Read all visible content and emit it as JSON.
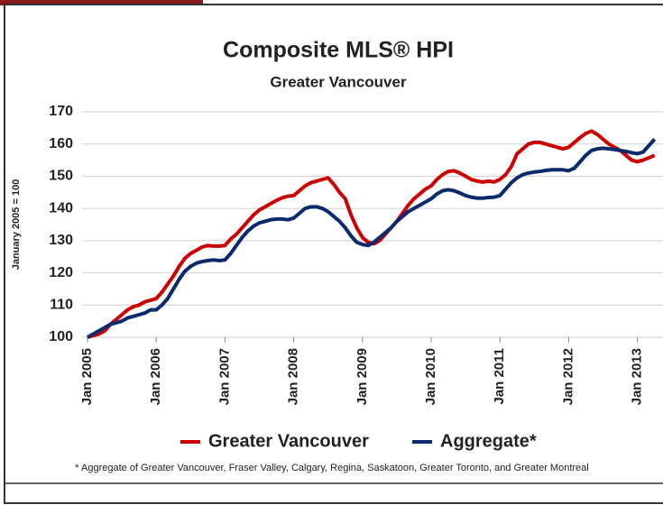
{
  "chart_data": {
    "type": "line",
    "title": "Composite MLS® HPI",
    "subtitle": "Greater Vancouver",
    "y_label": "January 2005 = 100",
    "footnote": "* Aggregate of Greater Vancouver, Fraser Valley, Calgary, Regina, Saskatoon, Greater Toronto, and Greater Montreal",
    "categories": [
      "Jan 2005",
      null,
      null,
      null,
      null,
      null,
      null,
      null,
      null,
      null,
      null,
      null,
      "Jan 2006",
      null,
      null,
      null,
      null,
      null,
      null,
      null,
      null,
      null,
      null,
      null,
      "Jan 2007",
      null,
      null,
      null,
      null,
      null,
      null,
      null,
      null,
      null,
      null,
      null,
      "Jan 2008",
      null,
      null,
      null,
      null,
      null,
      null,
      null,
      null,
      null,
      null,
      null,
      "Jan 2009",
      null,
      null,
      null,
      null,
      null,
      null,
      null,
      null,
      null,
      null,
      null,
      "Jan 2010",
      null,
      null,
      null,
      null,
      null,
      null,
      null,
      null,
      null,
      null,
      null,
      "Jan 2011",
      null,
      null,
      null,
      null,
      null,
      null,
      null,
      null,
      null,
      null,
      null,
      "Jan 2012",
      null,
      null,
      null,
      null,
      null,
      null,
      null,
      null,
      null,
      null,
      null,
      "Jan 2013",
      null,
      null,
      null
    ],
    "series": [
      {
        "name": "Greater Vancouver",
        "color": "#cc0000",
        "values": [
          100,
          100.5,
          101,
          102,
          104,
          105.5,
          107,
          108.5,
          109.5,
          110,
          111,
          111.5,
          112,
          114,
          116.5,
          119,
          122,
          124.5,
          126,
          127,
          128,
          128.5,
          128.3,
          128.3,
          128.5,
          130.5,
          132,
          134,
          136,
          138,
          139.5,
          140.5,
          141.5,
          142.5,
          143.3,
          143.8,
          144,
          145.5,
          147,
          148,
          148.5,
          149,
          149.5,
          147.5,
          145,
          143,
          138,
          134,
          131,
          129.5,
          129,
          130,
          132,
          134,
          136,
          138.5,
          141,
          143,
          144.5,
          146,
          147,
          149,
          150.5,
          151.5,
          151.7,
          151,
          150,
          149,
          148.5,
          148.2,
          148.5,
          148.2,
          149,
          150.5,
          153,
          157,
          158.5,
          160,
          160.5,
          160.5,
          160,
          159.5,
          159,
          158.5,
          159,
          160.5,
          162,
          163.3,
          164,
          163,
          161.5,
          160,
          159,
          158,
          156.5,
          155,
          154.5,
          155,
          155.7,
          156.5
        ]
      },
      {
        "name": "Aggregate*",
        "color": "#0a2a6e",
        "values": [
          100,
          101,
          102,
          103,
          104,
          104.5,
          105,
          106,
          106.5,
          107,
          107.5,
          108.5,
          108.5,
          110,
          112,
          115,
          118,
          120.5,
          122,
          123,
          123.5,
          123.8,
          124,
          123.8,
          124,
          126,
          128.5,
          131,
          133,
          134.5,
          135.5,
          136,
          136.5,
          136.7,
          136.7,
          136.5,
          137,
          138.5,
          140,
          140.5,
          140.5,
          140,
          139,
          137.5,
          136,
          134,
          131.5,
          129.5,
          128.8,
          128.5,
          129.5,
          131,
          132.5,
          134,
          136,
          137.5,
          139,
          140,
          141,
          142,
          143,
          144.5,
          145.5,
          145.8,
          145.5,
          144.8,
          144,
          143.5,
          143.2,
          143.2,
          143.4,
          143.5,
          144,
          146,
          148,
          149.5,
          150.5,
          151,
          151.3,
          151.5,
          151.8,
          152,
          152,
          152,
          151.7,
          152.5,
          154.5,
          156.5,
          158,
          158.5,
          158.7,
          158.5,
          158.3,
          158,
          157.7,
          157.3,
          157,
          157.5,
          159.5,
          161.5
        ]
      }
    ],
    "ylim": [
      100,
      170
    ],
    "yticks": [
      100,
      110,
      120,
      130,
      140,
      150,
      160,
      170
    ],
    "grid": true,
    "legend": "bottom"
  }
}
